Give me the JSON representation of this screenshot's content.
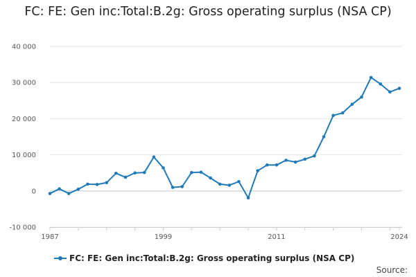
{
  "chart_data": {
    "type": "line",
    "title": "FC: FE: Gen inc:Total:B.2g: Gross operating surplus (NSA CP)",
    "xlabel": "",
    "ylabel": "",
    "x_tick_labels": [
      "1987",
      "1999",
      "2011",
      "2024"
    ],
    "y_tick_labels": [
      "-10 000",
      "0",
      "10 000",
      "20 000",
      "30 000",
      "40 000"
    ],
    "ylim": [
      -10000,
      40000
    ],
    "xlim": [
      1987,
      2024
    ],
    "grid": true,
    "legend_position": "bottom",
    "series": [
      {
        "name": "FC: FE: Gen inc:Total:B.2g: Gross operating surplus (NSA CP)",
        "color": "#1f7ab8",
        "x": [
          1987,
          1988,
          1989,
          1990,
          1991,
          1992,
          1993,
          1994,
          1995,
          1996,
          1997,
          1998,
          1999,
          2000,
          2001,
          2002,
          2003,
          2004,
          2005,
          2006,
          2007,
          2008,
          2009,
          2010,
          2011,
          2012,
          2013,
          2014,
          2015,
          2016,
          2017,
          2018,
          2019,
          2020,
          2021,
          2022,
          2023,
          2024
        ],
        "values": [
          -700,
          600,
          -700,
          500,
          1900,
          1800,
          2300,
          4900,
          3800,
          5000,
          5100,
          9400,
          6400,
          1000,
          1200,
          5100,
          5200,
          3600,
          1900,
          1600,
          2600,
          -1900,
          5600,
          7200,
          7200,
          8500,
          8000,
          8800,
          9700,
          15000,
          20900,
          21600,
          24000,
          26000,
          31400,
          29600,
          27400,
          28400
        ]
      }
    ]
  },
  "legend": {
    "label": "FC: FE: Gen inc:Total:B.2g: Gross operating surplus (NSA CP)"
  },
  "footer": {
    "source_label": "Source:"
  }
}
